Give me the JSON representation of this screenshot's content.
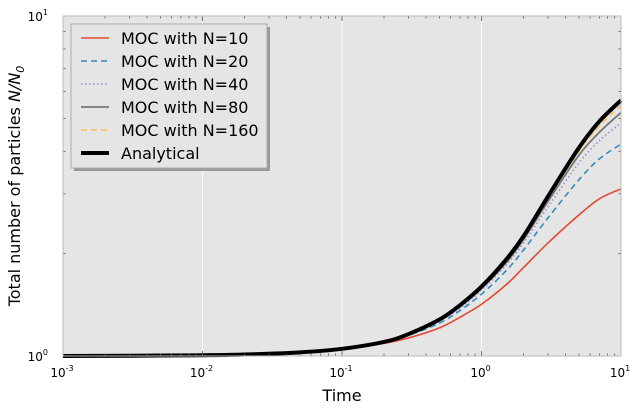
{
  "chart_data": {
    "type": "line",
    "title": "",
    "xlabel": "Time",
    "ylabel": "Total number of particles N/N_0",
    "ylabel_plain": "Total number of particles ",
    "ylabel_math": "N/N",
    "ylabel_math_sub": "0",
    "xscale": "log",
    "yscale": "log",
    "xlim": [
      0.001,
      10
    ],
    "ylim": [
      1,
      10
    ],
    "x_ticks": [
      {
        "base": "10",
        "exp": "-3"
      },
      {
        "base": "10",
        "exp": "-2"
      },
      {
        "base": "10",
        "exp": "-1"
      },
      {
        "base": "10",
        "exp": "0"
      },
      {
        "base": "10",
        "exp": "1"
      }
    ],
    "y_ticks": [
      {
        "base": "10",
        "exp": "0"
      },
      {
        "base": "10",
        "exp": "1"
      }
    ],
    "grid": true,
    "legend_position": "top-left",
    "x": [
      0.001,
      0.002,
      0.005,
      0.01,
      0.02,
      0.05,
      0.1,
      0.2,
      0.3,
      0.5,
      0.7,
      1.0,
      1.5,
      2.0,
      3.0,
      5.0,
      7.0,
      10.0
    ],
    "series": [
      {
        "name": "MOC with N=10",
        "color": "#e24a33",
        "dash": "solid",
        "width": 1.6,
        "values": [
          1.0,
          1.001,
          1.003,
          1.005,
          1.01,
          1.025,
          1.048,
          1.09,
          1.13,
          1.21,
          1.3,
          1.42,
          1.62,
          1.82,
          2.15,
          2.6,
          2.9,
          3.1
        ]
      },
      {
        "name": "MOC with N=20",
        "color": "#348abd",
        "dash": "dashed",
        "width": 1.6,
        "values": [
          1.0,
          1.001,
          1.003,
          1.005,
          1.01,
          1.025,
          1.049,
          1.1,
          1.15,
          1.25,
          1.36,
          1.52,
          1.78,
          2.05,
          2.55,
          3.3,
          3.8,
          4.2
        ]
      },
      {
        "name": "MOC with N=40",
        "color": "#988ed5",
        "dash": "dotted",
        "width": 1.6,
        "values": [
          1.0,
          1.001,
          1.003,
          1.005,
          1.01,
          1.025,
          1.05,
          1.1,
          1.16,
          1.27,
          1.38,
          1.56,
          1.85,
          2.15,
          2.75,
          3.7,
          4.3,
          4.85
        ]
      },
      {
        "name": "MOC with N=80",
        "color": "#777777",
        "dash": "solid",
        "width": 1.8,
        "values": [
          1.0,
          1.001,
          1.003,
          1.005,
          1.01,
          1.025,
          1.05,
          1.1,
          1.16,
          1.28,
          1.4,
          1.58,
          1.88,
          2.2,
          2.85,
          3.9,
          4.55,
          5.2
        ]
      },
      {
        "name": "MOC with N=160",
        "color": "#fbc15e",
        "dash": "dashed",
        "width": 1.6,
        "values": [
          1.0,
          1.001,
          1.003,
          1.005,
          1.01,
          1.025,
          1.05,
          1.1,
          1.16,
          1.28,
          1.4,
          1.59,
          1.9,
          2.22,
          2.9,
          4.0,
          4.75,
          5.45
        ]
      },
      {
        "name": "Analytical",
        "color": "#000000",
        "dash": "solid",
        "width": 4,
        "values": [
          1.0,
          1.001,
          1.003,
          1.005,
          1.01,
          1.025,
          1.05,
          1.1,
          1.16,
          1.28,
          1.41,
          1.6,
          1.92,
          2.25,
          2.95,
          4.1,
          4.9,
          5.65
        ]
      }
    ]
  }
}
